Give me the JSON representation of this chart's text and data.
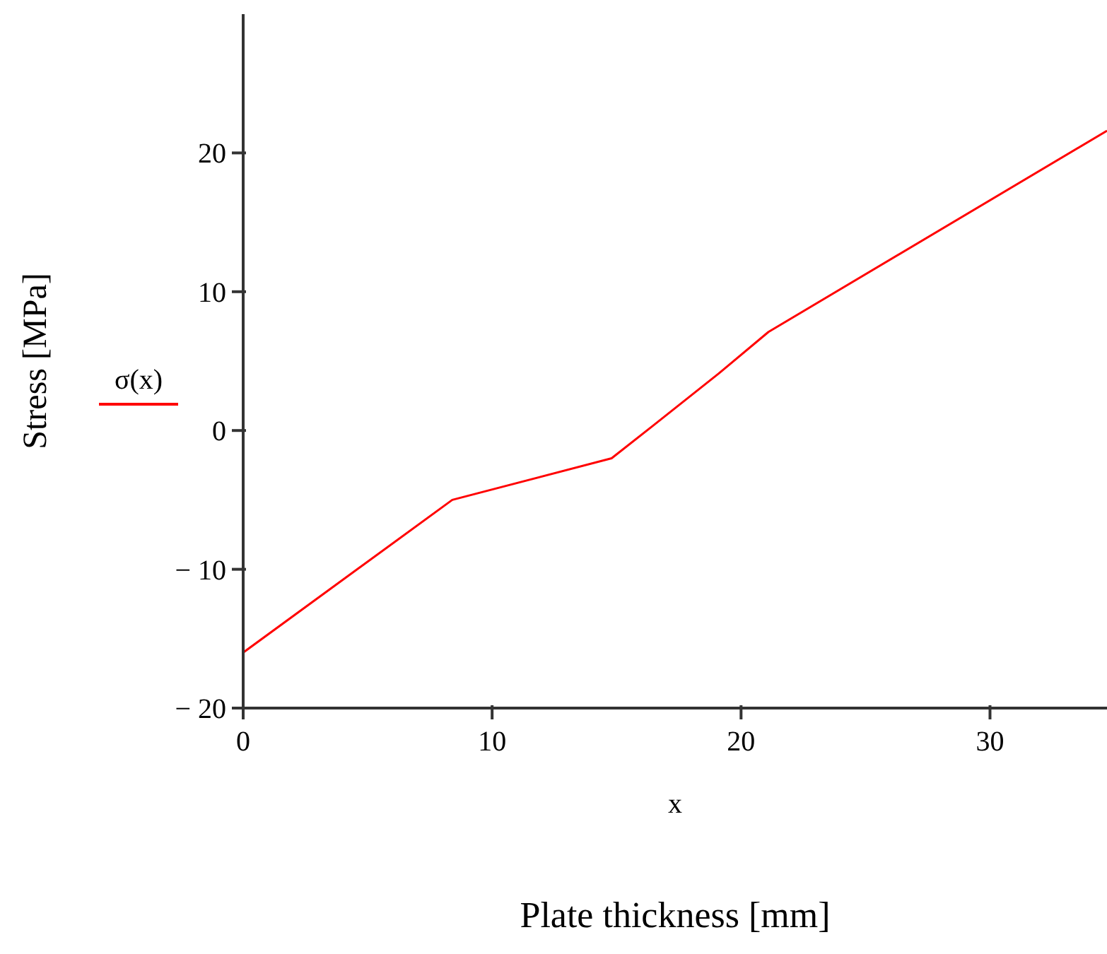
{
  "chart_data": {
    "type": "line",
    "xlabel": "x",
    "ylabel": "Stress [MPa]",
    "annotations": [
      "Plate thickness [mm]"
    ],
    "x": [
      0,
      8.4,
      14.8,
      16.5,
      19.1,
      21.1,
      34.7
    ],
    "series": [
      {
        "name": "σ(x)",
        "color": "#ff0000",
        "values": [
          -16,
          -5,
          -2,
          0.4,
          4.1,
          7.1,
          21.6
        ]
      }
    ],
    "xlim": [
      0,
      34.7
    ],
    "xticks": [
      0,
      10,
      20,
      30
    ],
    "ylim": [
      -20,
      30
    ],
    "yticks": [
      -20,
      -10,
      0,
      10,
      20
    ],
    "legend": "left",
    "grid": false,
    "marker": "none",
    "line_style": "solid"
  }
}
